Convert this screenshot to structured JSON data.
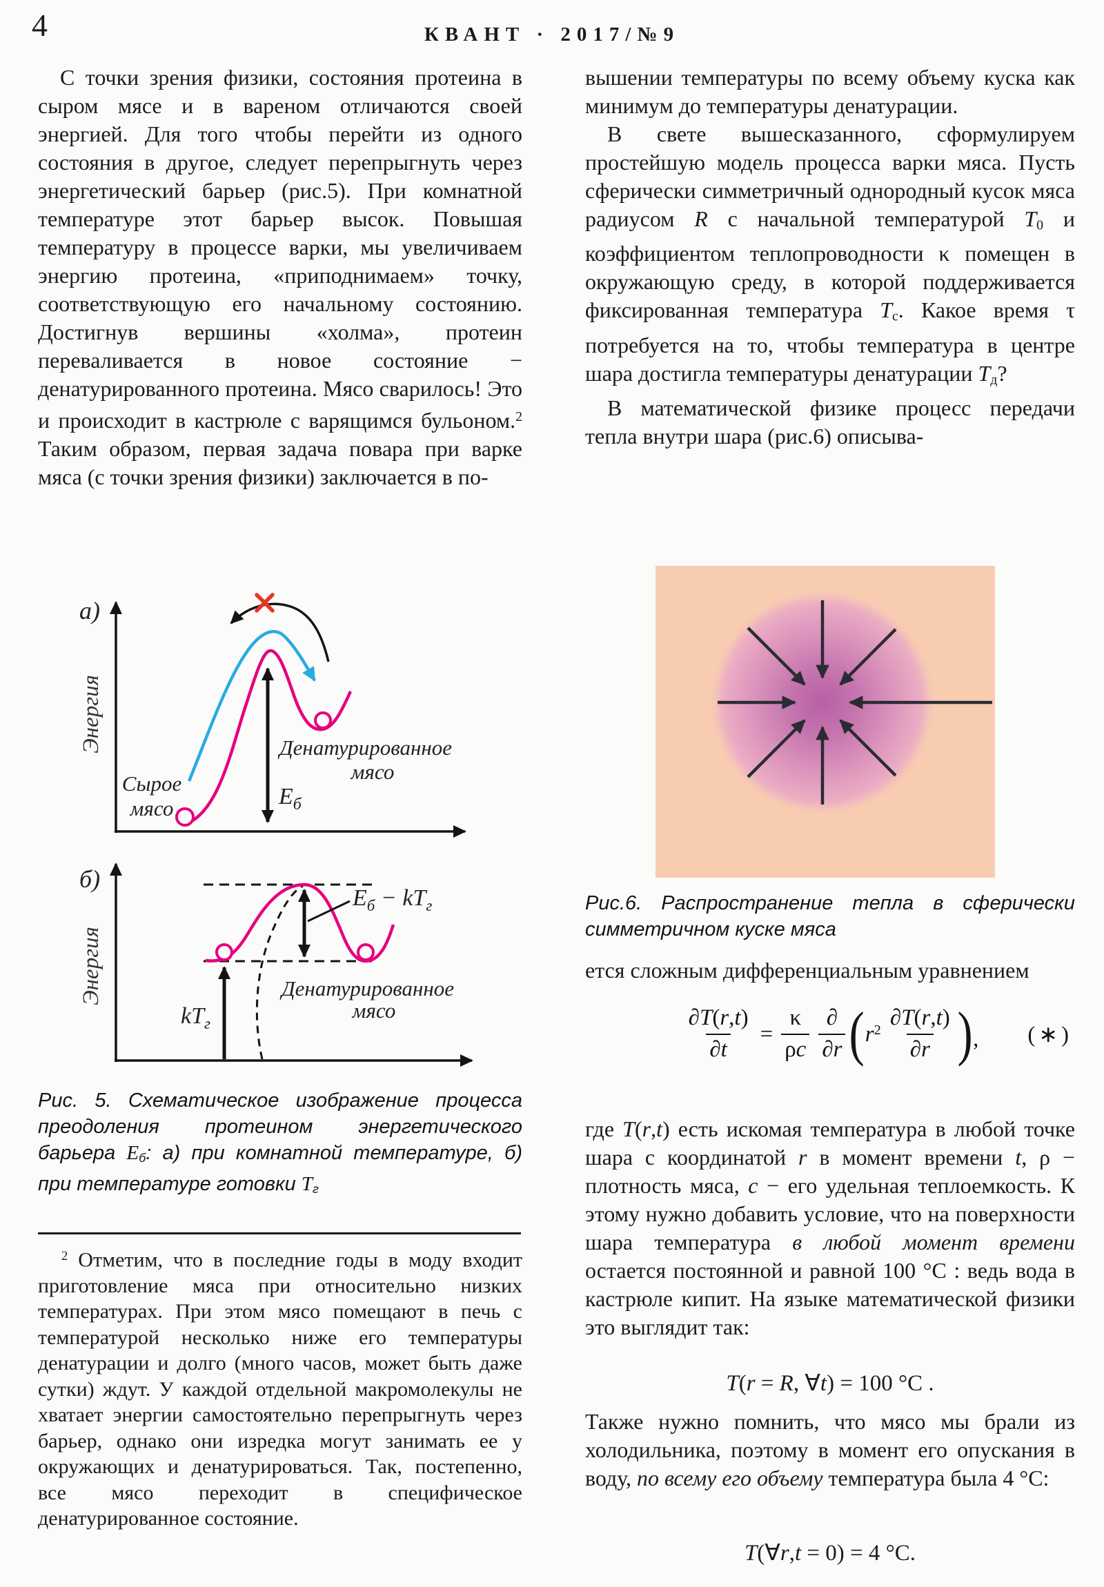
{
  "header": {
    "page_number": "4",
    "journal": "КВАНТ · 2017/№9"
  },
  "colors": {
    "text": "#1b1b1b",
    "page_background": "#fbfbfa",
    "magenta_curve": "#e6007e",
    "blue_curve": "#29aae1",
    "red_cross": "#e43723",
    "axis_black": "#141414",
    "fig6_background": "#f8ccb1",
    "fig6_sphere_center": "#b95ea4",
    "fig6_sphere_edge": "#eeb2c5",
    "fig6_arrow": "#2b2b33"
  },
  "left_column": {
    "paragraph1": [
      {
        "t": "С точки зрения физики, состояния протеина в сыром мясе и в вареном отличаются своей энергией. Для того чтобы перейти из одного состояния в другое, следует перепрыгнуть через энергетический барьер (рис.5). При комнатной температуре этот барьер высок. Повышая температуру в процессе варки, мы увеличиваем энергию протеина, «приподнимаем» точку, соответствующую его начальному состоянию. Достигнув вершины «холма», протеин переваливается в новое состояние − денатурированного протеина. Мясо сварилось! Это и происходит в кастрюле с варящимся бульоном."
      },
      {
        "t": "2",
        "s": "sup"
      },
      {
        "t": " Таким образом, первая задача повара при варке мяса (с точки зрения физики) заключается в по-"
      }
    ],
    "figure5a": {
      "panel_label": "а)",
      "y_axis_label": "Энергия",
      "raw_meat_line1": "Сырое",
      "raw_meat_line2": "мясо",
      "denatured_line1": "Денатурированное",
      "denatured_line2": "мясо",
      "barrier_E": "E",
      "barrier_E_sub": "б"
    },
    "figure5b": {
      "panel_label": "б)",
      "y_axis_label": "Энергия",
      "label_E": "E",
      "label_E_sub": "б",
      "label_minus": " − ",
      "label_kT": "kT",
      "label_kT_sub": "г",
      "kt_arrow_label": "kT",
      "kt_arrow_label_sub": "г",
      "denatured_line1": "Денатурированное",
      "denatured_line2": "мясо"
    },
    "figure5_caption": [
      {
        "t": "Рис. 5. Схематическое изображение процесса преодоления протеином энергетического барьера "
      },
      {
        "t": "E",
        "s": "i"
      },
      {
        "t": "б",
        "s": "sub"
      },
      {
        "t": ": а) при комнатной температуре, б) при температуре готовки "
      },
      {
        "t": "T",
        "s": "i"
      },
      {
        "t": "г",
        "s": "sub"
      }
    ],
    "footnote": [
      {
        "t": "2",
        "s": "sup"
      },
      {
        "t": " Отметим, что в последние годы в моду входит приготовление мяса при относительно низких температурах. При этом мясо помещают в печь с температурой несколько ниже его температуры денатурации и долго (много часов, может быть даже сутки) ждут. У каждой отдельной макромолекулы не хватает энергии самостоятельно перепрыгнуть через барьер, однако они изредка могут занимать ее у окружающих и денатурироваться. Так, постепенно, все мясо переходит в специфическое денатурированное состояние."
      }
    ]
  },
  "right_column": {
    "paragraph1": [
      {
        "t": "вышении температуры по всему объему куска как минимум до температуры денатурации."
      }
    ],
    "paragraph2": [
      {
        "t": "В свете вышесказанного, сформулируем простейшую модель процесса варки мяса. Пусть сферически симметричный однородный кусок мяса радиусом "
      },
      {
        "t": "R",
        "s": "i"
      },
      {
        "t": " с начальной температурой "
      },
      {
        "t": "T",
        "s": "i"
      },
      {
        "t": "0",
        "s": "sub"
      },
      {
        "t": " и коэффициентом теплопроводности κ помещен в окружающую среду, в которой поддерживается фиксированная температура "
      },
      {
        "t": "T",
        "s": "i"
      },
      {
        "t": "с",
        "s": "sub"
      },
      {
        "t": ". Какое время τ потребуется на то, чтобы температура в центре шара достигла температуры денатурации "
      },
      {
        "t": "T",
        "s": "i"
      },
      {
        "t": "д",
        "s": "sub"
      },
      {
        "t": "?"
      }
    ],
    "paragraph3": [
      {
        "t": "В математической физике процесс передачи тепла внутри шара (рис.6) описыва-"
      }
    ],
    "figure6": {
      "caption": [
        {
          "t": "Рис.6. Распространение тепла в сферически симметричном куске мяса"
        }
      ]
    },
    "paragraph4": [
      {
        "t": "ется сложным дифференциальным уравнением"
      }
    ],
    "eq_star": {
      "lhs_num": [
        {
          "t": "∂"
        },
        {
          "t": "T",
          "s": "i"
        },
        {
          "t": "("
        },
        {
          "t": "r",
          "s": "i"
        },
        {
          "t": ","
        },
        {
          "t": "t",
          "s": "i"
        },
        {
          "t": ")"
        }
      ],
      "lhs_den": [
        {
          "t": "∂"
        },
        {
          "t": "t",
          "s": "i"
        }
      ],
      "equals": "=",
      "coef_num": [
        {
          "t": "κ"
        }
      ],
      "coef_den": [
        {
          "t": "ρ"
        },
        {
          "t": "c",
          "s": "i"
        }
      ],
      "d_num": [
        {
          "t": "∂"
        }
      ],
      "d_den": [
        {
          "t": "∂"
        },
        {
          "t": "r",
          "s": "i"
        }
      ],
      "lparen": "(",
      "r_sq": [
        {
          "t": "r",
          "s": "i"
        },
        {
          "t": "2",
          "s": "sup"
        }
      ],
      "inner_num": [
        {
          "t": "∂"
        },
        {
          "t": "T",
          "s": "i"
        },
        {
          "t": "("
        },
        {
          "t": "r",
          "s": "i"
        },
        {
          "t": ","
        },
        {
          "t": "t",
          "s": "i"
        },
        {
          "t": ")"
        }
      ],
      "inner_den": [
        {
          "t": "∂"
        },
        {
          "t": "r",
          "s": "i"
        }
      ],
      "rparen": ")",
      "comma": ",",
      "tag": "(∗)"
    },
    "paragraph5": [
      {
        "t": "где "
      },
      {
        "t": "T",
        "s": "i"
      },
      {
        "t": "("
      },
      {
        "t": "r",
        "s": "i"
      },
      {
        "t": ","
      },
      {
        "t": "t",
        "s": "i"
      },
      {
        "t": ")"
      },
      {
        "t": " есть искомая температура в любой точке шара с координатой "
      },
      {
        "t": "r",
        "s": "i"
      },
      {
        "t": " в момент времени "
      },
      {
        "t": "t",
        "s": "i"
      },
      {
        "t": ", ρ − плотность мяса, "
      },
      {
        "t": "c",
        "s": "i"
      },
      {
        "t": " − его удельная теплоемкость. К этому нужно добавить условие, что на поверхности шара температура "
      },
      {
        "t": "в любой момент времени",
        "s": "em"
      },
      {
        "t": " остается постоянной и равной 100 °C : ведь вода в кастрюле кипит. На языке математической физики это выглядит так:"
      }
    ],
    "eq_bc1": [
      {
        "t": "T",
        "s": "i"
      },
      {
        "t": "("
      },
      {
        "t": "r",
        "s": "i"
      },
      {
        "t": " = "
      },
      {
        "t": "R",
        "s": "i"
      },
      {
        "t": ", ∀"
      },
      {
        "t": "t",
        "s": "i"
      },
      {
        "t": ") = 100 °C ."
      }
    ],
    "paragraph6": [
      {
        "t": "Также нужно помнить, что мясо мы брали из холодильника, поэтому в момент его опускания в воду, "
      },
      {
        "t": "по всему его объему",
        "s": "em"
      },
      {
        "t": " температура была 4 °C:"
      }
    ],
    "eq_bc2": [
      {
        "t": "T",
        "s": "i"
      },
      {
        "t": "("
      },
      {
        "t": "∀"
      },
      {
        "t": "r",
        "s": "i"
      },
      {
        "t": ","
      },
      {
        "t": "t",
        "s": "i"
      },
      {
        "t": " = 0) = 4 °C."
      }
    ]
  }
}
